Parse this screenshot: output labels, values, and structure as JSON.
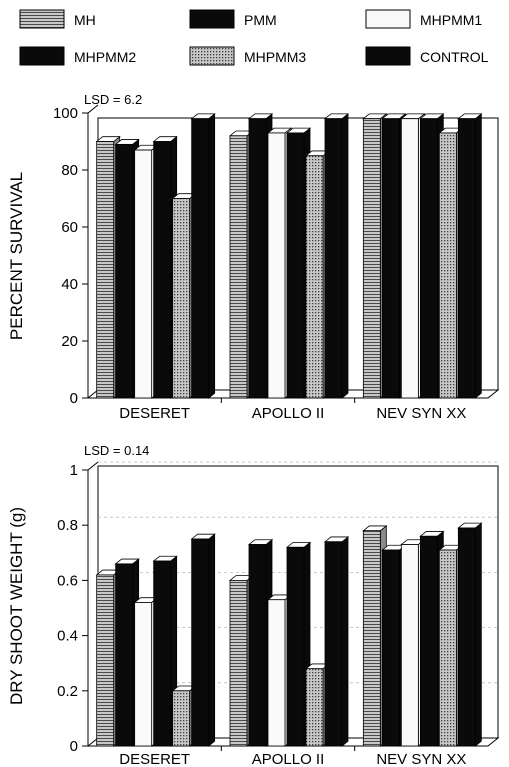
{
  "legend": [
    {
      "label": "MH",
      "pattern": "hlines"
    },
    {
      "label": "PMM",
      "pattern": "solid"
    },
    {
      "label": "MHPMM1",
      "pattern": "light"
    },
    {
      "label": "MHPMM2",
      "pattern": "solid"
    },
    {
      "label": "MHPMM3",
      "pattern": "dots"
    },
    {
      "label": "CONTROL",
      "pattern": "solid"
    }
  ],
  "colors": {
    "solid": "#0a0a0a",
    "light": "#fafafa",
    "hatch_bg": "#c8c8c8",
    "hatch_line": "#4a4a4a"
  },
  "chart_data": [
    {
      "type": "bar",
      "annotation": "LSD = 6.2",
      "xlabel": "",
      "ylabel": "PERCENT SURVIVAL",
      "ylim": [
        0,
        100
      ],
      "yticks": [
        "0",
        "20",
        "40",
        "60",
        "80",
        "100"
      ],
      "grid": false,
      "categories": [
        "DESERET",
        "APOLLO II",
        "NEV SYN XX"
      ],
      "series": [
        {
          "name": "MH",
          "values": [
            90,
            92,
            98
          ]
        },
        {
          "name": "PMM",
          "values": [
            89,
            98,
            98
          ]
        },
        {
          "name": "MHPMM1",
          "values": [
            87,
            93,
            98
          ]
        },
        {
          "name": "MHPMM2",
          "values": [
            90,
            93,
            98
          ]
        },
        {
          "name": "MHPMM3",
          "values": [
            70,
            85,
            93
          ]
        },
        {
          "name": "CONTROL",
          "values": [
            98,
            98,
            98
          ]
        }
      ]
    },
    {
      "type": "bar",
      "annotation": "LSD = 0.14",
      "xlabel": "",
      "ylabel": "DRY SHOOT WEIGHT (g)",
      "ylim": [
        0,
        1
      ],
      "yticks": [
        "0",
        "0.2",
        "0.4",
        "0.6",
        "0.8",
        "1"
      ],
      "grid": true,
      "categories": [
        "DESERET",
        "APOLLO II",
        "NEV SYN XX"
      ],
      "series": [
        {
          "name": "MH",
          "values": [
            0.62,
            0.6,
            0.78
          ]
        },
        {
          "name": "PMM",
          "values": [
            0.66,
            0.73,
            0.71
          ]
        },
        {
          "name": "MHPMM1",
          "values": [
            0.52,
            0.53,
            0.73
          ]
        },
        {
          "name": "MHPMM2",
          "values": [
            0.67,
            0.72,
            0.76
          ]
        },
        {
          "name": "MHPMM3",
          "values": [
            0.2,
            0.28,
            0.71
          ]
        },
        {
          "name": "CONTROL",
          "values": [
            0.75,
            0.74,
            0.79
          ]
        }
      ]
    }
  ]
}
